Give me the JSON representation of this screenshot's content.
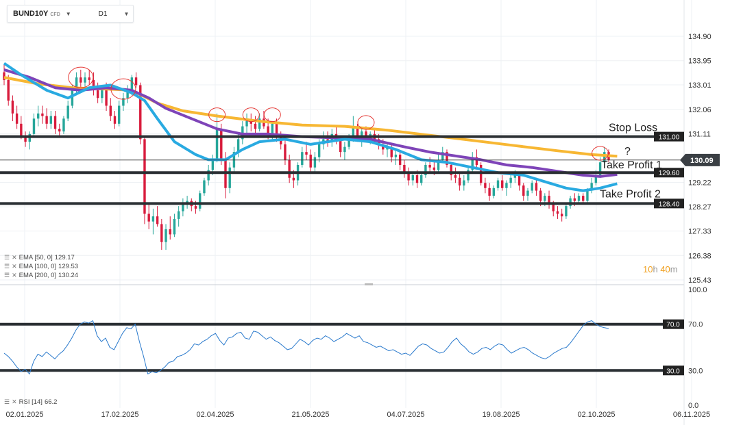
{
  "symbol_bar": {
    "symbol": "BUND10Y",
    "type_tag": "CFD",
    "timeframe": "D1",
    "dropdown_icon": "chevron-down-icon"
  },
  "indicators": [
    {
      "label": "EMA [50, 0]",
      "value": "129.17"
    },
    {
      "label": "EMA [100, 0]",
      "value": "129.53"
    },
    {
      "label": "EMA [200, 0]",
      "value": "130.24"
    }
  ],
  "rsi_label": {
    "label": "RSI [14]",
    "value": "66.2"
  },
  "timer": {
    "hours": "10",
    "h_unit": "h",
    "minutes": "40",
    "m_unit": "m"
  },
  "colors": {
    "up": "#26a69a",
    "down": "#d81b3c",
    "ema50": "#29aae1",
    "ema100": "#7e44b8",
    "ema200": "#f7b733",
    "level_line": "#2a2f33",
    "rsi_line": "#2979cc",
    "circle": "#e53935"
  },
  "chart_data": {
    "type": "candlestick",
    "x_ticks": [
      "02.01.2025",
      "17.02.2025",
      "02.04.2025",
      "21.05.2025",
      "04.07.2025",
      "19.08.2025",
      "02.10.2025",
      "06.11.2025"
    ],
    "price_axis_ticks": [
      "134.90",
      "133.95",
      "133.01",
      "132.06",
      "131.11",
      "129.22",
      "128.27",
      "127.33",
      "126.38",
      "125.43"
    ],
    "price_ylim": [
      125.43,
      134.9
    ],
    "current_price": "130.09",
    "levels": [
      {
        "value": "131.00",
        "annotation": "Stop Loss"
      },
      {
        "value": "129.60",
        "annotation": "Take Profit 1"
      },
      {
        "value": "128.40",
        "annotation": "Take Profit 2"
      }
    ],
    "question_annotation": "?",
    "candles_ohlc": [
      [
        133.5,
        133.8,
        133.0,
        133.2
      ],
      [
        133.2,
        133.4,
        132.2,
        132.4
      ],
      [
        132.4,
        132.6,
        131.6,
        131.9
      ],
      [
        131.9,
        132.2,
        131.3,
        131.5
      ],
      [
        131.5,
        131.8,
        130.9,
        131.0
      ],
      [
        131.0,
        131.2,
        130.6,
        130.8
      ],
      [
        130.8,
        131.2,
        130.5,
        131.1
      ],
      [
        131.1,
        131.9,
        131.0,
        131.7
      ],
      [
        131.7,
        132.2,
        131.4,
        131.9
      ],
      [
        131.9,
        132.2,
        131.5,
        131.8
      ],
      [
        131.8,
        132.1,
        131.3,
        131.5
      ],
      [
        131.5,
        132.0,
        131.3,
        131.8
      ],
      [
        131.8,
        132.0,
        131.1,
        131.3
      ],
      [
        131.3,
        131.5,
        131.0,
        131.2
      ],
      [
        131.2,
        131.8,
        131.1,
        131.7
      ],
      [
        131.7,
        132.4,
        131.6,
        132.2
      ],
      [
        132.2,
        133.0,
        132.1,
        132.8
      ],
      [
        132.8,
        133.5,
        132.6,
        133.3
      ],
      [
        133.3,
        133.6,
        132.9,
        133.1
      ],
      [
        133.1,
        133.5,
        132.8,
        133.3
      ],
      [
        133.3,
        133.6,
        133.0,
        133.2
      ],
      [
        133.2,
        133.5,
        132.6,
        132.8
      ],
      [
        132.8,
        133.1,
        132.3,
        132.5
      ],
      [
        132.5,
        133.0,
        132.3,
        132.9
      ],
      [
        132.9,
        133.1,
        132.0,
        132.2
      ],
      [
        132.2,
        132.5,
        131.6,
        131.8
      ],
      [
        131.8,
        132.0,
        131.3,
        131.5
      ],
      [
        131.5,
        132.4,
        131.4,
        132.2
      ],
      [
        132.2,
        132.7,
        132.0,
        132.5
      ],
      [
        132.5,
        133.0,
        132.3,
        132.8
      ],
      [
        132.8,
        133.4,
        132.6,
        133.3
      ],
      [
        133.3,
        133.5,
        132.9,
        133.0
      ],
      [
        133.0,
        133.1,
        130.7,
        130.9
      ],
      [
        130.9,
        131.0,
        127.6,
        128.0
      ],
      [
        128.0,
        128.4,
        127.4,
        127.7
      ],
      [
        127.7,
        128.2,
        127.2,
        127.9
      ],
      [
        127.9,
        128.3,
        127.5,
        127.6
      ],
      [
        127.6,
        127.8,
        126.6,
        126.9
      ],
      [
        126.9,
        127.6,
        126.6,
        127.4
      ],
      [
        127.4,
        127.9,
        127.0,
        127.2
      ],
      [
        127.2,
        128.0,
        127.1,
        127.8
      ],
      [
        127.8,
        128.3,
        127.5,
        128.1
      ],
      [
        128.1,
        128.6,
        127.9,
        128.4
      ],
      [
        128.4,
        128.7,
        128.2,
        128.5
      ],
      [
        128.5,
        128.6,
        128.1,
        128.3
      ],
      [
        128.3,
        128.5,
        128.0,
        128.2
      ],
      [
        128.2,
        128.9,
        128.1,
        128.8
      ],
      [
        128.8,
        129.4,
        128.7,
        129.3
      ],
      [
        129.3,
        129.9,
        129.1,
        129.7
      ],
      [
        129.7,
        130.3,
        129.5,
        130.1
      ],
      [
        130.1,
        131.9,
        130.0,
        131.3
      ],
      [
        131.3,
        131.5,
        129.9,
        130.1
      ],
      [
        130.1,
        130.4,
        128.6,
        129.0
      ],
      [
        129.0,
        130.0,
        128.8,
        129.8
      ],
      [
        129.8,
        130.6,
        129.6,
        130.4
      ],
      [
        130.4,
        131.1,
        130.2,
        130.9
      ],
      [
        130.9,
        131.6,
        130.7,
        131.4
      ],
      [
        131.4,
        131.9,
        131.1,
        131.6
      ],
      [
        131.6,
        131.9,
        131.2,
        131.5
      ],
      [
        131.5,
        131.8,
        131.0,
        131.3
      ],
      [
        131.3,
        131.9,
        131.2,
        131.7
      ],
      [
        131.7,
        132.0,
        131.3,
        131.4
      ],
      [
        131.4,
        131.7,
        130.9,
        131.1
      ],
      [
        131.1,
        131.6,
        130.9,
        131.5
      ],
      [
        131.5,
        131.7,
        130.8,
        131.0
      ],
      [
        131.0,
        131.2,
        130.5,
        130.7
      ],
      [
        130.7,
        130.9,
        129.9,
        130.1
      ],
      [
        130.1,
        130.3,
        129.2,
        129.4
      ],
      [
        129.4,
        129.7,
        129.0,
        129.3
      ],
      [
        129.3,
        130.0,
        129.1,
        129.9
      ],
      [
        129.9,
        130.6,
        129.8,
        130.4
      ],
      [
        130.4,
        130.8,
        130.1,
        130.3
      ],
      [
        130.3,
        130.5,
        129.6,
        129.8
      ],
      [
        129.8,
        130.4,
        129.6,
        130.2
      ],
      [
        130.2,
        130.9,
        130.0,
        130.7
      ],
      [
        130.7,
        131.2,
        130.5,
        130.9
      ],
      [
        130.9,
        131.2,
        130.6,
        130.8
      ],
      [
        130.8,
        131.3,
        130.6,
        131.1
      ],
      [
        131.1,
        131.4,
        130.7,
        130.9
      ],
      [
        130.9,
        131.0,
        130.2,
        130.4
      ],
      [
        130.4,
        130.8,
        130.1,
        130.6
      ],
      [
        130.6,
        131.1,
        130.5,
        130.9
      ],
      [
        130.9,
        131.8,
        130.8,
        131.4
      ],
      [
        131.4,
        131.5,
        130.8,
        131.0
      ],
      [
        131.0,
        131.3,
        130.6,
        131.2
      ],
      [
        131.2,
        131.4,
        130.8,
        130.9
      ],
      [
        130.9,
        131.2,
        130.7,
        131.1
      ],
      [
        131.1,
        131.3,
        130.8,
        130.9
      ],
      [
        130.9,
        131.1,
        130.5,
        130.7
      ],
      [
        130.7,
        130.9,
        130.3,
        130.5
      ],
      [
        130.5,
        130.8,
        130.2,
        130.6
      ],
      [
        130.6,
        130.7,
        130.0,
        130.2
      ],
      [
        130.2,
        130.5,
        129.9,
        130.3
      ],
      [
        130.3,
        130.4,
        129.7,
        129.9
      ],
      [
        129.9,
        130.1,
        129.4,
        129.6
      ],
      [
        129.6,
        129.8,
        129.1,
        129.3
      ],
      [
        129.3,
        129.6,
        129.1,
        129.5
      ],
      [
        129.5,
        129.7,
        129.0,
        129.2
      ],
      [
        129.2,
        129.6,
        129.1,
        129.5
      ],
      [
        129.5,
        130.0,
        129.4,
        129.9
      ],
      [
        129.9,
        130.2,
        129.6,
        129.8
      ],
      [
        129.8,
        130.1,
        129.5,
        129.7
      ],
      [
        129.7,
        130.3,
        129.6,
        130.1
      ],
      [
        130.1,
        130.6,
        130.0,
        130.4
      ],
      [
        130.4,
        130.5,
        129.8,
        129.9
      ],
      [
        129.9,
        130.0,
        129.3,
        129.5
      ],
      [
        129.5,
        129.8,
        129.2,
        129.4
      ],
      [
        129.4,
        129.6,
        128.9,
        129.1
      ],
      [
        129.1,
        129.5,
        128.9,
        129.3
      ],
      [
        129.3,
        129.8,
        129.2,
        129.7
      ],
      [
        129.7,
        130.4,
        129.6,
        130.2
      ],
      [
        130.2,
        130.5,
        129.8,
        129.9
      ],
      [
        129.9,
        130.0,
        129.1,
        129.2
      ],
      [
        129.2,
        129.4,
        128.8,
        129.0
      ],
      [
        129.0,
        129.2,
        128.5,
        128.7
      ],
      [
        128.7,
        129.1,
        128.6,
        129.0
      ],
      [
        129.0,
        129.4,
        128.9,
        129.3
      ],
      [
        129.3,
        129.5,
        128.9,
        129.0
      ],
      [
        129.0,
        129.3,
        128.7,
        129.2
      ],
      [
        129.2,
        129.6,
        129.0,
        129.4
      ],
      [
        129.4,
        129.7,
        129.2,
        129.5
      ],
      [
        129.5,
        129.6,
        128.9,
        129.1
      ],
      [
        129.1,
        129.2,
        128.5,
        128.7
      ],
      [
        128.7,
        129.0,
        128.5,
        128.9
      ],
      [
        128.9,
        129.3,
        128.8,
        129.2
      ],
      [
        129.2,
        129.4,
        128.7,
        128.9
      ],
      [
        128.9,
        129.0,
        128.3,
        128.5
      ],
      [
        128.5,
        128.8,
        128.3,
        128.7
      ],
      [
        128.7,
        128.9,
        128.2,
        128.4
      ],
      [
        128.4,
        128.5,
        127.9,
        128.1
      ],
      [
        128.1,
        128.3,
        127.8,
        128.0
      ],
      [
        128.0,
        128.2,
        127.7,
        127.9
      ],
      [
        127.9,
        128.4,
        127.8,
        128.3
      ],
      [
        128.3,
        128.7,
        128.2,
        128.6
      ],
      [
        128.6,
        128.8,
        128.3,
        128.5
      ],
      [
        128.5,
        128.8,
        128.4,
        128.7
      ],
      [
        128.7,
        128.8,
        128.4,
        128.5
      ],
      [
        128.5,
        129.0,
        128.4,
        128.9
      ],
      [
        128.9,
        129.4,
        128.8,
        129.2
      ],
      [
        129.2,
        129.7,
        129.1,
        129.5
      ],
      [
        129.5,
        130.2,
        129.4,
        130.0
      ],
      [
        130.0,
        130.6,
        129.8,
        130.4
      ],
      [
        130.4,
        130.5,
        130.0,
        130.1
      ]
    ],
    "ema50": [
      [
        0,
        133.85
      ],
      [
        4,
        133.4
      ],
      [
        10,
        132.8
      ],
      [
        15,
        132.5
      ],
      [
        20,
        132.9
      ],
      [
        25,
        133.0
      ],
      [
        30,
        132.7
      ],
      [
        33,
        132.4
      ],
      [
        36,
        131.7
      ],
      [
        40,
        130.8
      ],
      [
        45,
        130.3
      ],
      [
        48,
        130.1
      ],
      [
        52,
        130.1
      ],
      [
        56,
        130.5
      ],
      [
        60,
        130.8
      ],
      [
        66,
        130.9
      ],
      [
        72,
        130.7
      ],
      [
        80,
        130.9
      ],
      [
        86,
        130.8
      ],
      [
        92,
        130.5
      ],
      [
        98,
        130.1
      ],
      [
        104,
        130.0
      ],
      [
        110,
        129.8
      ],
      [
        116,
        129.6
      ],
      [
        122,
        129.5
      ],
      [
        128,
        129.2
      ],
      [
        132,
        129.0
      ],
      [
        136,
        128.9
      ],
      [
        140,
        129.0
      ],
      [
        144,
        129.17
      ]
    ],
    "ema100": [
      [
        0,
        133.6
      ],
      [
        6,
        133.3
      ],
      [
        12,
        132.9
      ],
      [
        18,
        132.8
      ],
      [
        24,
        132.9
      ],
      [
        30,
        132.8
      ],
      [
        34,
        132.5
      ],
      [
        38,
        132.1
      ],
      [
        44,
        131.7
      ],
      [
        50,
        131.3
      ],
      [
        56,
        131.1
      ],
      [
        62,
        131.1
      ],
      [
        70,
        131.0
      ],
      [
        78,
        130.95
      ],
      [
        86,
        130.9
      ],
      [
        94,
        130.6
      ],
      [
        100,
        130.4
      ],
      [
        106,
        130.25
      ],
      [
        112,
        130.1
      ],
      [
        118,
        129.9
      ],
      [
        124,
        129.8
      ],
      [
        130,
        129.65
      ],
      [
        136,
        129.5
      ],
      [
        140,
        129.45
      ],
      [
        144,
        129.53
      ]
    ],
    "ema200": [
      [
        0,
        133.3
      ],
      [
        8,
        133.05
      ],
      [
        16,
        132.9
      ],
      [
        24,
        132.85
      ],
      [
        30,
        132.8
      ],
      [
        36,
        132.3
      ],
      [
        42,
        132.0
      ],
      [
        50,
        131.8
      ],
      [
        60,
        131.6
      ],
      [
        70,
        131.45
      ],
      [
        80,
        131.4
      ],
      [
        90,
        131.25
      ],
      [
        100,
        131.05
      ],
      [
        110,
        130.85
      ],
      [
        120,
        130.65
      ],
      [
        130,
        130.45
      ],
      [
        138,
        130.3
      ],
      [
        144,
        130.24
      ]
    ],
    "circles": [
      [
        18,
        133.3
      ],
      [
        28,
        132.85
      ],
      [
        50,
        131.85
      ],
      [
        58,
        131.85
      ],
      [
        63,
        131.85
      ],
      [
        85,
        131.55
      ],
      [
        140,
        130.35
      ]
    ],
    "rsi_axis_ticks": [
      "100.0",
      "70.0",
      "30.0",
      "0.0"
    ],
    "rsi_ylim": [
      0,
      100
    ],
    "rsi_levels": [
      "70.0",
      "30.0"
    ],
    "rsi_values": [
      45,
      42,
      38,
      33,
      29,
      31,
      27,
      38,
      44,
      42,
      46,
      43,
      40,
      44,
      47,
      52,
      58,
      65,
      70,
      72,
      71,
      73,
      60,
      55,
      58,
      50,
      48,
      55,
      62,
      67,
      66,
      70,
      55,
      42,
      27,
      29,
      28,
      30,
      33,
      37,
      38,
      42,
      43,
      45,
      48,
      53,
      52,
      55,
      57,
      60,
      62,
      56,
      52,
      58,
      59,
      62,
      63,
      58,
      57,
      64,
      63,
      60,
      57,
      59,
      56,
      54,
      51,
      48,
      49,
      53,
      57,
      55,
      52,
      56,
      58,
      57,
      60,
      58,
      55,
      57,
      59,
      62,
      60,
      58,
      60,
      55,
      54,
      52,
      50,
      51,
      49,
      47,
      48,
      46,
      44,
      45,
      43,
      47,
      51,
      53,
      52,
      49,
      47,
      45,
      46,
      50,
      55,
      58,
      53,
      50,
      46,
      44,
      46,
      49,
      50,
      48,
      51,
      53,
      52,
      48,
      45,
      47,
      49,
      50,
      48,
      45,
      43,
      41,
      40,
      42,
      45,
      47,
      49,
      50,
      54,
      59,
      64,
      69,
      72,
      73,
      70,
      68,
      67,
      66.2
    ]
  }
}
